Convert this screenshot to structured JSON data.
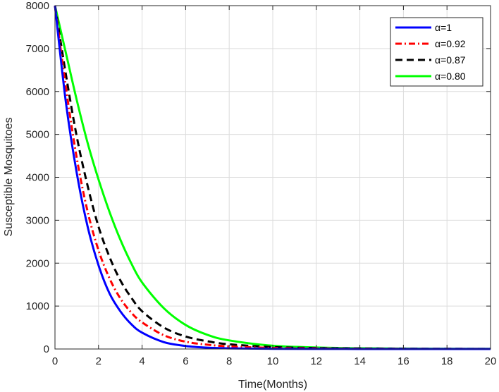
{
  "chart_data": {
    "type": "line",
    "title": "",
    "xlabel": "Time(Months)",
    "ylabel": "Susceptible Mosquitoes",
    "xlim": [
      0,
      20
    ],
    "ylim": [
      0,
      8000
    ],
    "xticks": [
      0,
      2,
      4,
      6,
      8,
      10,
      12,
      14,
      16,
      18,
      20
    ],
    "yticks": [
      0,
      1000,
      2000,
      3000,
      4000,
      5000,
      6000,
      7000,
      8000
    ],
    "grid": true,
    "legend_position": "top-right",
    "series": [
      {
        "name": "α=1",
        "color": "#0000ff",
        "dash": "solid",
        "x": [
          0,
          0.5,
          1,
          1.5,
          2,
          2.5,
          3,
          3.5,
          4,
          5,
          6,
          7,
          8,
          10,
          12,
          14,
          16,
          18,
          20
        ],
        "values": [
          8000,
          5750,
          4100,
          2850,
          1950,
          1300,
          880,
          580,
          380,
          160,
          70,
          30,
          15,
          5,
          2,
          1,
          0,
          0,
          0
        ]
      },
      {
        "name": "α=0.92",
        "color": "#ff0000",
        "dash": "dashdot",
        "x": [
          0,
          0.5,
          1,
          1.5,
          2,
          2.5,
          3,
          3.5,
          4,
          5,
          6,
          7,
          8,
          10,
          12,
          14,
          16,
          18,
          20
        ],
        "values": [
          8000,
          6100,
          4450,
          3200,
          2300,
          1650,
          1180,
          850,
          620,
          320,
          170,
          100,
          60,
          25,
          12,
          6,
          3,
          2,
          1
        ]
      },
      {
        "name": "α=0.87",
        "color": "#000000",
        "dash": "dashed",
        "x": [
          0,
          0.5,
          1,
          1.5,
          2,
          2.5,
          3,
          3.5,
          4,
          5,
          6,
          7,
          8,
          10,
          12,
          14,
          16,
          18,
          20
        ],
        "values": [
          8000,
          6400,
          4950,
          3800,
          2850,
          2150,
          1600,
          1200,
          880,
          500,
          290,
          180,
          110,
          45,
          22,
          12,
          7,
          4,
          2
        ]
      },
      {
        "name": "α=0.80",
        "color": "#00ff00",
        "dash": "solid",
        "x": [
          0,
          0.5,
          1,
          1.5,
          2,
          2.5,
          3,
          3.5,
          4,
          5,
          6,
          7,
          8,
          10,
          12,
          14,
          16,
          18,
          20
        ],
        "values": [
          8000,
          6900,
          5800,
          4800,
          3950,
          3200,
          2550,
          2000,
          1550,
          950,
          560,
          330,
          200,
          75,
          35,
          18,
          10,
          6,
          4
        ]
      }
    ]
  }
}
